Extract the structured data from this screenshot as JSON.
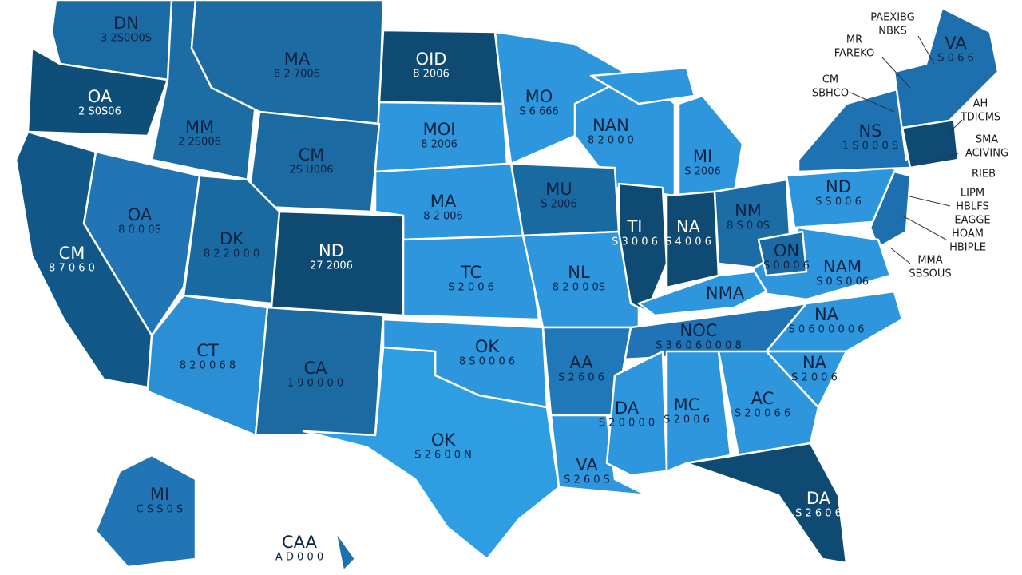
{
  "regions": [
    {
      "label": "DN",
      "value": "3 2S0O0S"
    },
    {
      "label": "MA",
      "value": "8 2 7006"
    },
    {
      "label": "OID",
      "value": "8 2006"
    },
    {
      "label": "OA",
      "value": "2 S0S06"
    },
    {
      "label": "MM",
      "value": "2 2S006"
    },
    {
      "label": "CM",
      "value": "2S U006"
    },
    {
      "label": "MO",
      "value": "S 6 666"
    },
    {
      "label": "MOI",
      "value": "8 2006"
    },
    {
      "label": "NAN",
      "value": "8 2 0 0 0"
    },
    {
      "label": "MI",
      "value": "S 2006"
    },
    {
      "label": "MU",
      "value": "S 2006"
    },
    {
      "label": "MA",
      "value": "8 2 006"
    },
    {
      "label": "OA",
      "value": "8 0 0 0S"
    },
    {
      "label": "CM",
      "value": "8 7 0 6 0"
    },
    {
      "label": "DK",
      "value": "8 2 2 0 0 0"
    },
    {
      "label": "ND",
      "value": "27 2006"
    },
    {
      "label": "TC",
      "value": "S 2 0 0 6"
    },
    {
      "label": "NL",
      "value": "8 2 0 0 0S"
    },
    {
      "label": "TI",
      "value": "S 3 0 0 6"
    },
    {
      "label": "NA",
      "value": "S 4 0 0 6"
    },
    {
      "label": "NM",
      "value": "8 S 0 0S"
    },
    {
      "label": "ND",
      "value": "S S 0 0 6"
    },
    {
      "label": "ON",
      "value": "S 0 0 0 6"
    },
    {
      "label": "NAM",
      "value": "S 0 S 0 06"
    },
    {
      "label": "NMA",
      "value": ""
    },
    {
      "label": "NOC",
      "value": "S 3 6 0 6 0 0 0 8"
    },
    {
      "label": "NA",
      "value": "S 0 6 0 0 0 0 6"
    },
    {
      "label": "CT",
      "value": "8 2 0 0 6 8"
    },
    {
      "label": "CA",
      "value": "1 9 0 0 0 0"
    },
    {
      "label": "OK",
      "value": "8 S 0 0 0 6"
    },
    {
      "label": "AA",
      "value": "S 2 6 0 6"
    },
    {
      "label": "NA",
      "value": "S 2 0 0 6"
    },
    {
      "label": "DA",
      "value": "S 2 0 0 0 0"
    },
    {
      "label": "MC",
      "value": "S 2 0 0 6"
    },
    {
      "label": "AC",
      "value": "S 2 0 0 6 6"
    },
    {
      "label": "OK",
      "value": "S 2 6 0 0 N"
    },
    {
      "label": "VA",
      "value": "S 2 6 0 S"
    },
    {
      "label": "DA",
      "value": "S 2 6 0 6"
    },
    {
      "label": "MI",
      "value": "C S S 0 S"
    },
    {
      "label": "CAA",
      "value": "A D 0 0 0"
    },
    {
      "label": "VA",
      "value": "S 0 6 6"
    },
    {
      "label": "NS",
      "value": "1 S 0 0 0 S"
    }
  ],
  "callouts": [
    [
      "PAEXIBG",
      "NBKS"
    ],
    [
      "MR",
      "FAREKO"
    ],
    [
      "CM",
      "SBHCO"
    ],
    [
      "AH",
      "TDICMS"
    ],
    [
      "SMA",
      "ACIVING"
    ],
    [
      "RIEB"
    ],
    [
      "LIPM",
      "HBLFS",
      "EAGGE"
    ],
    [
      "HOAM",
      "HBIPLE"
    ],
    [
      "MMA",
      "SBSOUS"
    ]
  ]
}
